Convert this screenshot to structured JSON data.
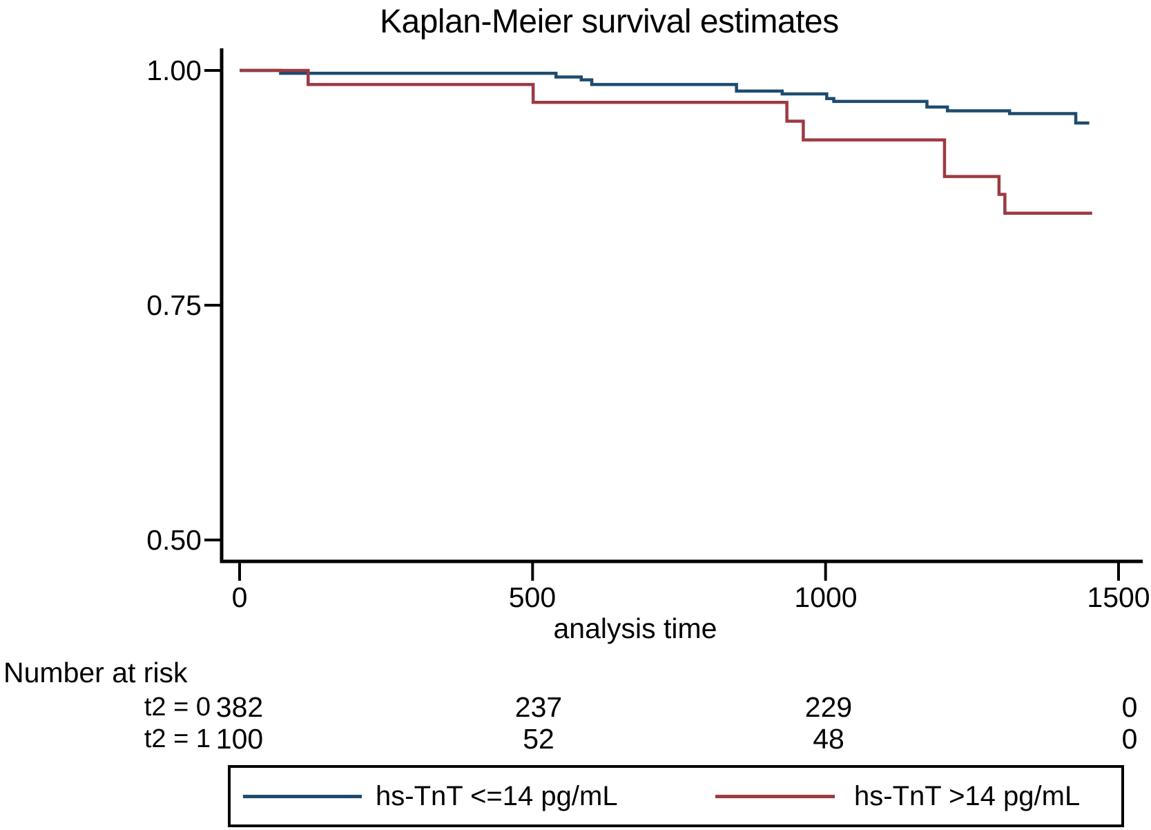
{
  "chart_data": {
    "type": "line",
    "subtype": "kaplan-meier-step",
    "title": "Kaplan-Meier survival estimates",
    "xlabel": "analysis time",
    "ylabel": "",
    "xlim": [
      0,
      1500
    ],
    "ylim": [
      0.5,
      1.0
    ],
    "grid": false,
    "legend_position": "bottom-box",
    "x_ticks": [
      0,
      500,
      1000,
      1500
    ],
    "x_tick_labels": [
      "0",
      "500",
      "1000",
      "1500"
    ],
    "y_ticks": [
      1.0,
      0.75,
      0.5
    ],
    "y_tick_labels": [
      "1.00",
      "0.75",
      "0.50"
    ],
    "axis_color": "#000000",
    "series": [
      {
        "name": "hs-TnT <=14 pg/mL",
        "color": "#1e4b6f",
        "steps": [
          [
            0,
            1.0
          ],
          [
            70,
            0.997
          ],
          [
            540,
            0.993
          ],
          [
            583,
            0.99
          ],
          [
            601,
            0.985
          ],
          [
            848,
            0.978
          ],
          [
            926,
            0.975
          ],
          [
            1002,
            0.97
          ],
          [
            1014,
            0.967
          ],
          [
            1173,
            0.961
          ],
          [
            1208,
            0.957
          ],
          [
            1314,
            0.954
          ],
          [
            1427,
            0.944
          ]
        ],
        "end_time": 1450
      },
      {
        "name": "hs-TnT >14 pg/mL",
        "color": "#9d3a42",
        "steps": [
          [
            0,
            1.0
          ],
          [
            117,
            0.985
          ],
          [
            501,
            0.966
          ],
          [
            934,
            0.946
          ],
          [
            962,
            0.926
          ],
          [
            1203,
            0.887
          ],
          [
            1296,
            0.868
          ],
          [
            1306,
            0.848
          ]
        ],
        "end_time": 1455
      }
    ],
    "number_at_risk": {
      "label": "Number at risk",
      "times": [
        0,
        500,
        1000,
        1500
      ],
      "rows": [
        {
          "label": "t2 = 0",
          "values": [
            "382",
            "237",
            "229",
            "0"
          ]
        },
        {
          "label": "t2 = 1",
          "values": [
            "100",
            "52",
            "48",
            "0"
          ]
        }
      ]
    }
  },
  "colors": {
    "series_le14": "#1e4b6f",
    "series_gt14": "#9d3a42",
    "axis": "#000000",
    "background": "#ffffff"
  }
}
